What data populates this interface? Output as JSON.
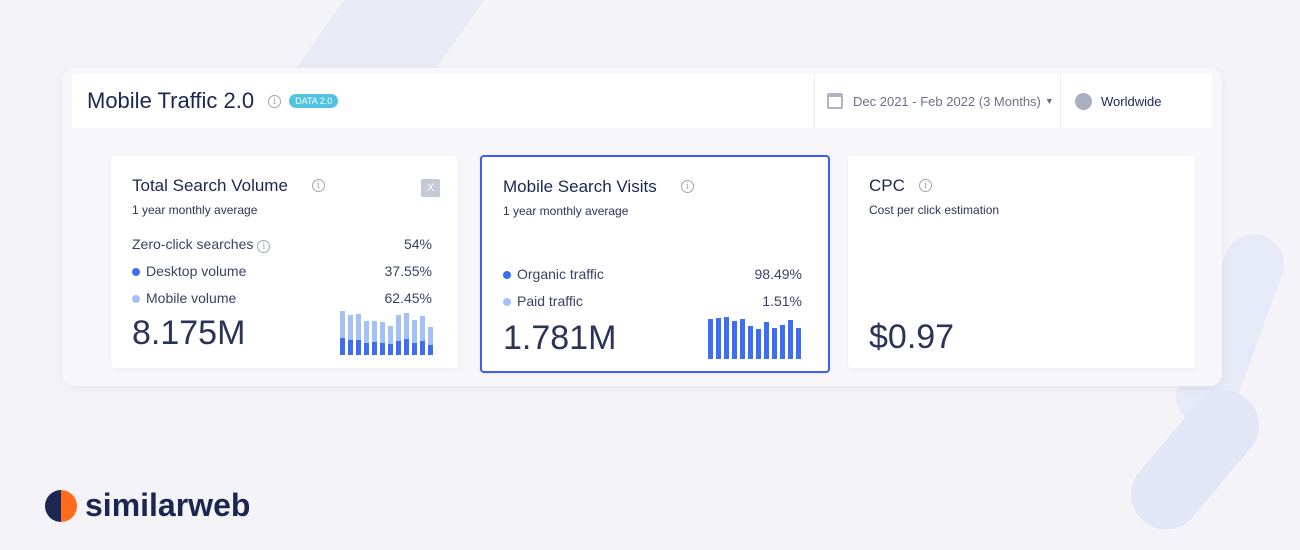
{
  "header": {
    "title": "Mobile Traffic 2.0",
    "badge": "DATA 2.0",
    "date_range": "Dec 2021 - Feb 2022 (3 Months)",
    "country": "Worldwide"
  },
  "cards": [
    {
      "title": "Total Search Volume",
      "subtitle": "1 year monthly average",
      "rows": [
        {
          "label": "Zero-click searches",
          "value": "54%"
        },
        {
          "label": "Desktop volume",
          "value": "37.55%",
          "color": "#3d6df2"
        },
        {
          "label": "Mobile volume",
          "value": "62.45%",
          "color": "#a3c1f7"
        }
      ],
      "total": "8.175M",
      "bars_desktop": [
        49,
        43,
        45,
        36,
        37,
        36,
        32,
        41,
        46,
        36,
        40,
        29
      ],
      "bars_total": [
        128,
        115,
        120,
        98,
        98,
        96,
        85,
        115,
        123,
        101,
        113,
        81
      ]
    },
    {
      "title": "Mobile Search Visits",
      "subtitle": "1 year monthly average",
      "rows": [
        {
          "label": "Organic traffic",
          "value": "98.49%",
          "color": "#3d6df2"
        },
        {
          "label": "Paid traffic",
          "value": "1.51%",
          "color": "#a3c1f7"
        }
      ],
      "total": "1.781M",
      "bars": [
        120,
        122,
        126,
        114,
        120,
        100,
        90,
        110,
        94,
        102,
        116,
        92
      ]
    },
    {
      "title": "CPC",
      "subtitle": "Cost per click estimation",
      "total": "$0.97"
    }
  ],
  "brand": "similarweb",
  "colors": {
    "accent": "#3d6df2",
    "light": "#a3c1f7",
    "selected_border": "#3d5ef0"
  }
}
